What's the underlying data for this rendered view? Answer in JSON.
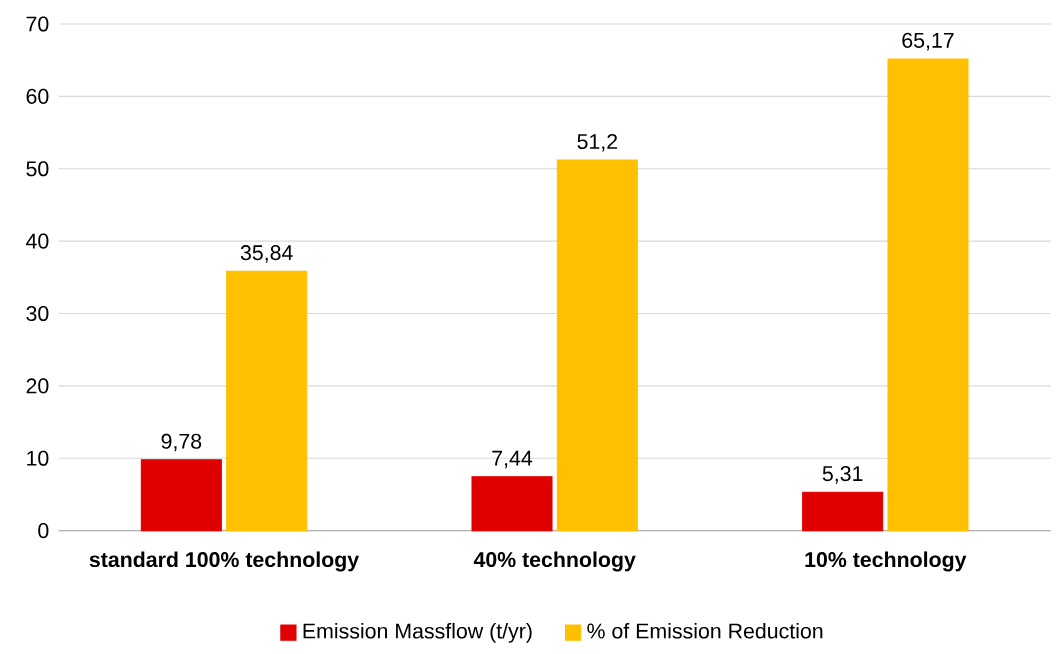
{
  "chart_data": {
    "type": "bar",
    "categories": [
      "standard 100% technology",
      "40% technology",
      "10% technology"
    ],
    "series": [
      {
        "name": "Emission Massflow (t/yr)",
        "color": "#e00000",
        "values": [
          9.78,
          7.44,
          5.31
        ],
        "value_labels": [
          "9,78",
          "7,44",
          "5,31"
        ]
      },
      {
        "name": "% of Emission Reduction",
        "color": "#ffc000",
        "values": [
          35.84,
          51.2,
          65.17
        ],
        "value_labels": [
          "35,84",
          "51,2",
          "65,17"
        ]
      }
    ],
    "ylim": [
      0,
      70
    ],
    "yticks": [
      0,
      10,
      20,
      30,
      40,
      50,
      60,
      70
    ],
    "grid": "y",
    "legend": "bottom"
  }
}
